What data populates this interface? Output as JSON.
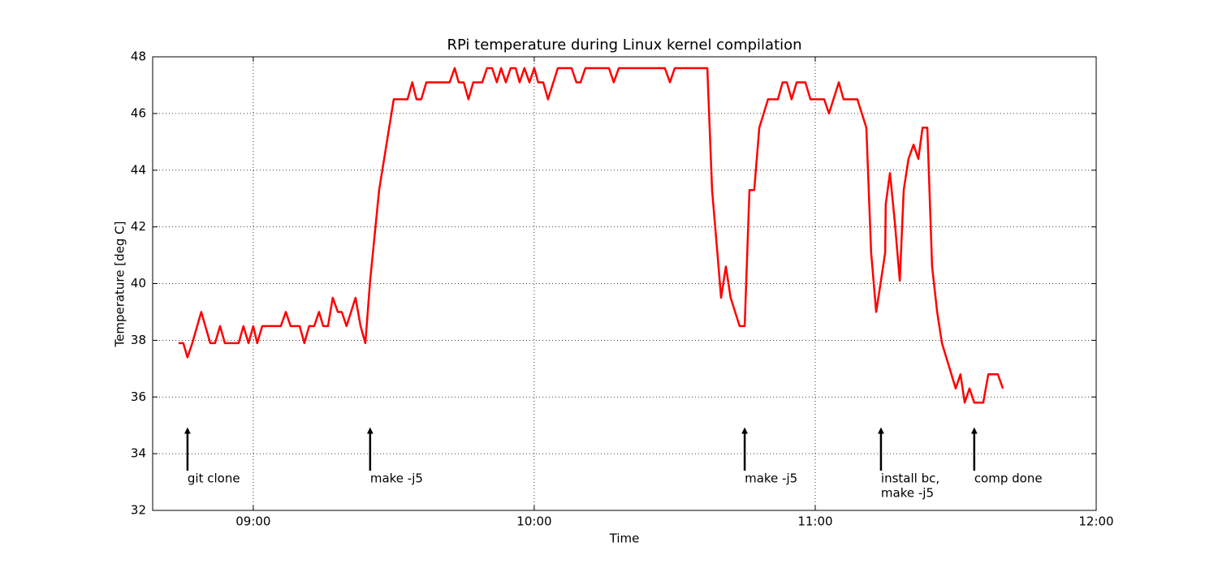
{
  "chart_data": {
    "type": "line",
    "title": "RPi temperature during Linux kernel compilation",
    "x_label": "Time",
    "y_label": "Temperature [deg C]",
    "color": "#ff0000",
    "grid": true,
    "xlim": [
      8.642,
      12
    ],
    "xticks": [
      {
        "value": 9,
        "label": "09:00"
      },
      {
        "value": 10,
        "label": "10:00"
      },
      {
        "value": 11,
        "label": "11:00"
      },
      {
        "value": 12,
        "label": "12:00"
      }
    ],
    "ylim": [
      32,
      48
    ],
    "yticks": [
      32,
      34,
      36,
      38,
      40,
      42,
      44,
      46,
      48
    ],
    "x": [
      8.734,
      8.751,
      8.766,
      8.783,
      8.815,
      8.847,
      8.864,
      8.882,
      8.899,
      8.948,
      8.965,
      8.983,
      9.0,
      9.014,
      9.032,
      9.098,
      9.116,
      9.133,
      9.165,
      9.182,
      9.199,
      9.217,
      9.234,
      9.249,
      9.266,
      9.283,
      9.301,
      9.315,
      9.332,
      9.364,
      9.382,
      9.399,
      9.416,
      9.448,
      9.5,
      9.549,
      9.566,
      9.581,
      9.598,
      9.616,
      9.699,
      9.717,
      9.731,
      9.749,
      9.766,
      9.783,
      9.815,
      9.832,
      9.85,
      9.867,
      9.882,
      9.899,
      9.916,
      9.934,
      9.948,
      9.965,
      9.983,
      10.0,
      10.014,
      10.032,
      10.049,
      10.084,
      10.133,
      10.15,
      10.165,
      10.182,
      10.266,
      10.283,
      10.301,
      10.465,
      10.483,
      10.5,
      10.616,
      10.633,
      10.65,
      10.665,
      10.682,
      10.699,
      10.731,
      10.749,
      10.766,
      10.783,
      10.801,
      10.832,
      10.867,
      10.884,
      10.899,
      10.916,
      10.934,
      10.965,
      10.983,
      11.032,
      11.049,
      11.084,
      11.101,
      11.15,
      11.182,
      11.199,
      11.217,
      11.234,
      11.249,
      11.251,
      11.266,
      11.283,
      11.301,
      11.315,
      11.332,
      11.35,
      11.367,
      11.382,
      11.399,
      11.416,
      11.434,
      11.451,
      11.5,
      11.517,
      11.532,
      11.549,
      11.566,
      11.598,
      11.616,
      11.65,
      11.668
    ],
    "values": [
      37.9,
      37.9,
      37.4,
      37.9,
      39.0,
      37.9,
      37.9,
      38.5,
      37.9,
      37.9,
      38.5,
      37.9,
      38.5,
      37.9,
      38.5,
      38.5,
      39.0,
      38.5,
      38.5,
      37.9,
      38.5,
      38.5,
      39.0,
      38.5,
      38.5,
      39.5,
      39.0,
      39.0,
      38.5,
      39.5,
      38.5,
      37.9,
      40.1,
      43.3,
      46.5,
      46.5,
      47.1,
      46.5,
      46.5,
      47.1,
      47.1,
      47.6,
      47.1,
      47.1,
      46.5,
      47.1,
      47.1,
      47.6,
      47.6,
      47.1,
      47.6,
      47.1,
      47.6,
      47.6,
      47.1,
      47.6,
      47.1,
      47.6,
      47.1,
      47.1,
      46.5,
      47.6,
      47.6,
      47.1,
      47.1,
      47.6,
      47.6,
      47.1,
      47.6,
      47.6,
      47.1,
      47.6,
      47.6,
      43.3,
      41.3,
      39.5,
      40.6,
      39.5,
      38.5,
      38.5,
      43.3,
      43.3,
      45.5,
      46.5,
      46.5,
      47.1,
      47.1,
      46.5,
      47.1,
      47.1,
      46.5,
      46.5,
      46.0,
      47.1,
      46.5,
      46.5,
      45.5,
      41.1,
      39.0,
      40.1,
      41.1,
      42.8,
      43.9,
      42.2,
      40.1,
      43.3,
      44.4,
      44.9,
      44.4,
      45.5,
      45.5,
      40.6,
      39.0,
      37.9,
      36.3,
      36.8,
      35.8,
      36.3,
      35.8,
      35.8,
      36.8,
      36.8,
      36.3
    ],
    "annotations": [
      {
        "lines": [
          "git clone"
        ],
        "x": 8.766,
        "y": 33.4,
        "arrow_tip": 34.9
      },
      {
        "lines": [
          "make -j5"
        ],
        "x": 9.416,
        "y": 33.4,
        "arrow_tip": 34.9
      },
      {
        "lines": [
          "make -j5"
        ],
        "x": 10.749,
        "y": 33.4,
        "arrow_tip": 34.9
      },
      {
        "lines": [
          "install bc,",
          "make -j5"
        ],
        "x": 11.234,
        "y": 33.4,
        "arrow_tip": 34.9
      },
      {
        "lines": [
          "comp done"
        ],
        "x": 11.566,
        "y": 33.4,
        "arrow_tip": 34.9
      }
    ]
  }
}
